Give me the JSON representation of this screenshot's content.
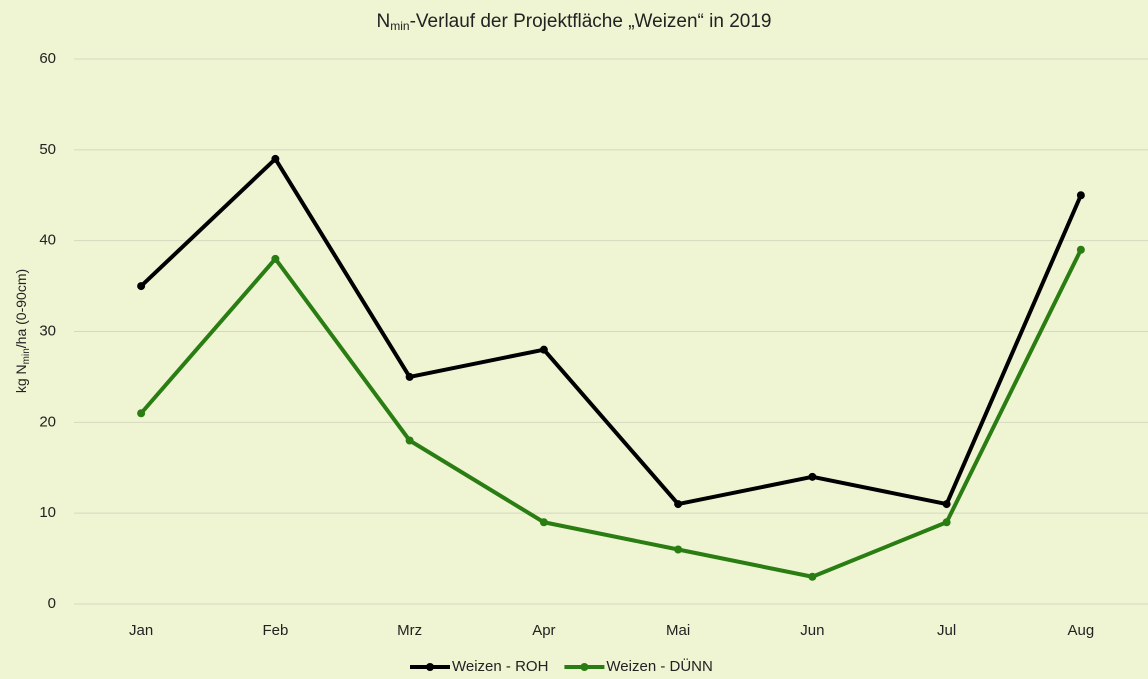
{
  "chart_data": {
    "type": "line",
    "title": [
      "N",
      "min",
      "-Verlauf der Projektfläche „Weizen“ in 2019"
    ],
    "y_label": [
      "kg N",
      "min",
      "/ha (0-90cm)"
    ],
    "categories": [
      "Jan",
      "Feb",
      "Mrz",
      "Apr",
      "Mai",
      "Jun",
      "Jul",
      "Aug"
    ],
    "series": [
      {
        "name": "Weizen - ROH",
        "color": "#000000",
        "values": [
          35,
          49,
          25,
          28,
          11,
          14,
          11,
          45
        ]
      },
      {
        "name": "Weizen - DÜNN",
        "color": "#2a7d12",
        "values": [
          21,
          38,
          18,
          9,
          6,
          3,
          9,
          39
        ]
      }
    ],
    "ylim": [
      0,
      60
    ],
    "yticks": [
      0,
      10,
      20,
      30,
      40,
      50,
      60
    ],
    "grid": true,
    "legend": "bottom"
  }
}
